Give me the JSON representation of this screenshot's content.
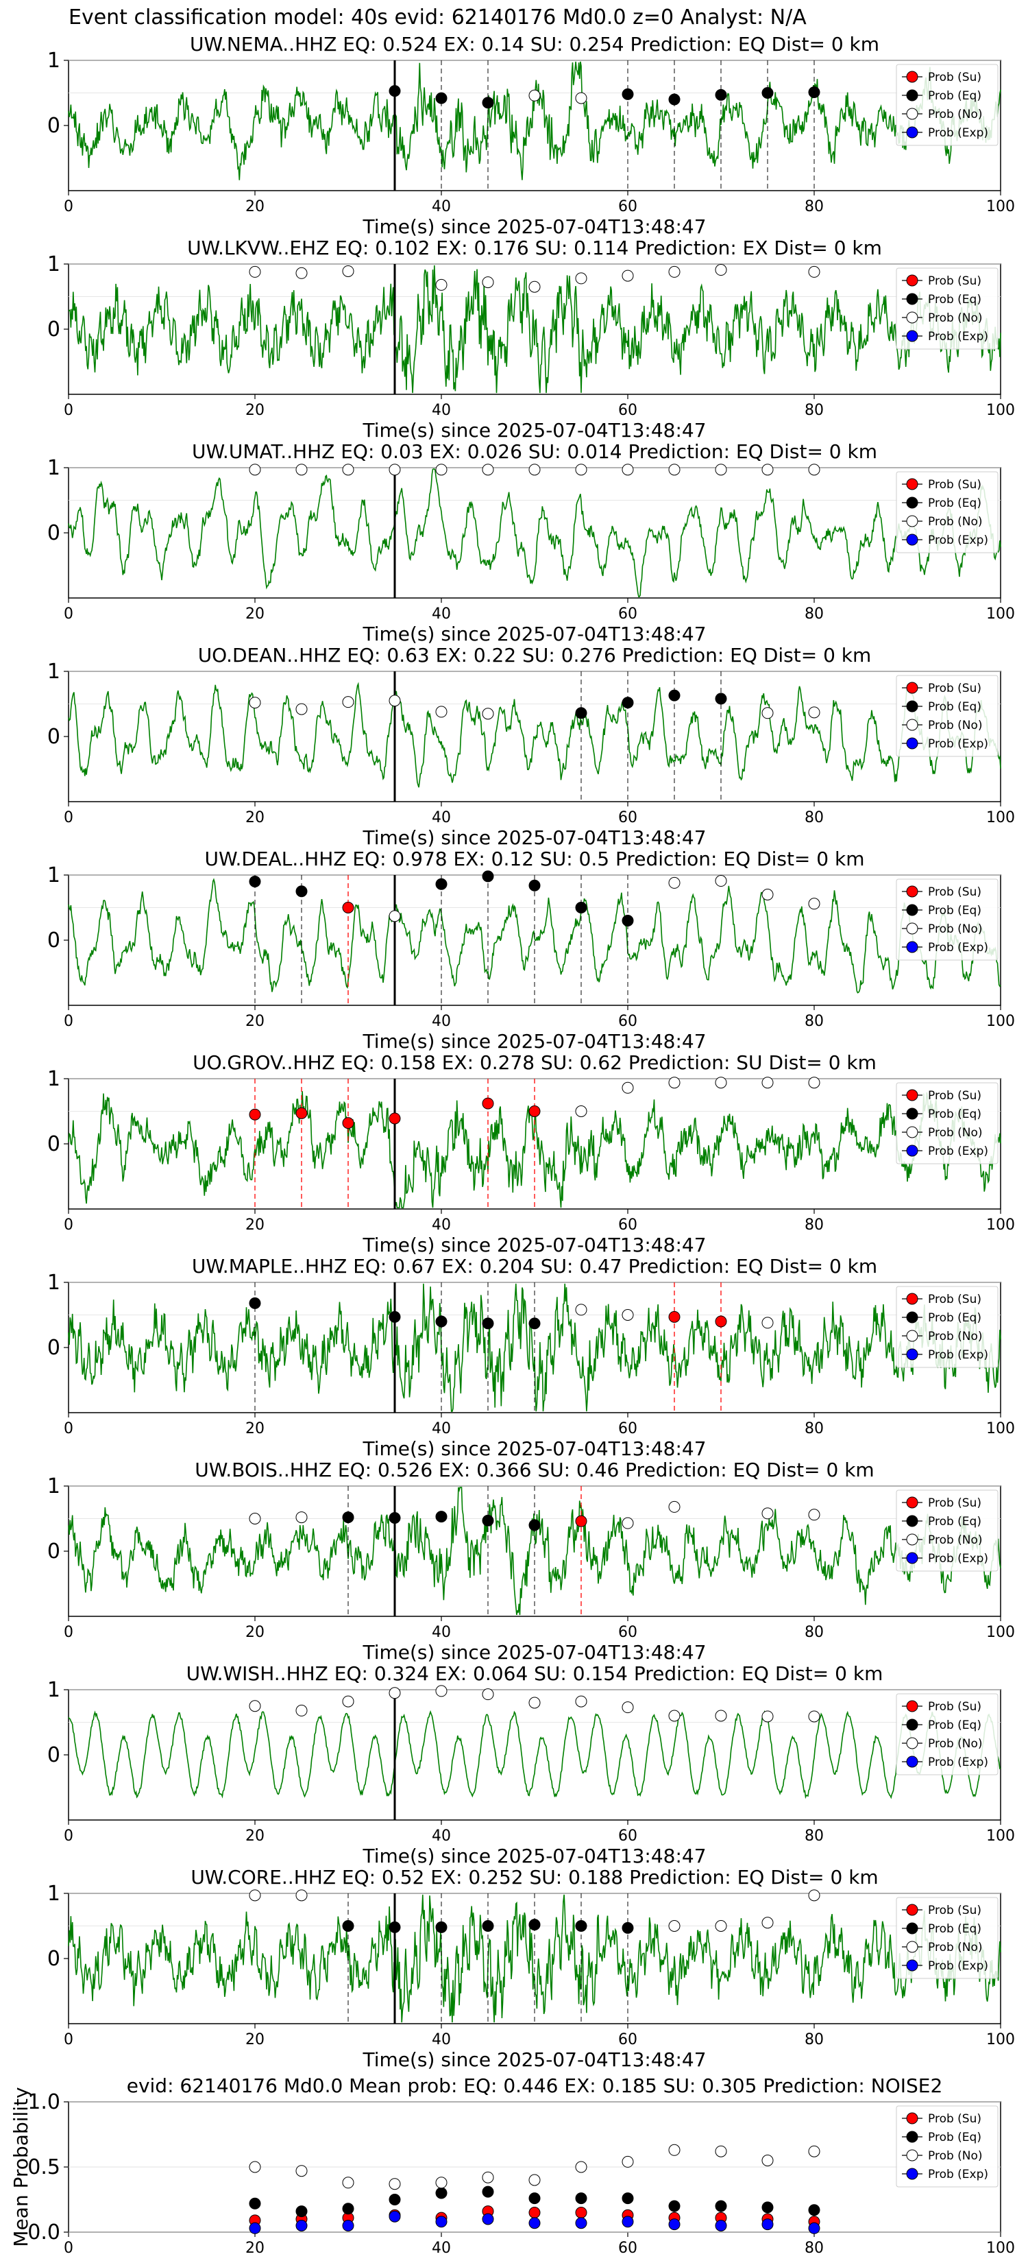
{
  "suptitle": "Event classification model: 40s evid: 62140176 Md0.0 z=0 Analyst: N/A",
  "colors": {
    "waveform": "#008000",
    "su": "#ff0000",
    "eq": "#000000",
    "no": "#ffffff",
    "exp": "#0000ff",
    "su_line": "#ff0000",
    "eq_line": "#000000"
  },
  "chart_data": [
    {
      "type": "line",
      "seed": 11,
      "style": "broadband",
      "title": "UW.NEMA..HHZ   EQ: 0.524  EX: 0.14  SU: 0.254   Prediction: EQ    Dist= 0 km",
      "xlabel": "Time(s) since 2025-07-04T13:48:47",
      "xlim": [
        0,
        100
      ],
      "ylim": [
        -1,
        1
      ],
      "xticks": [
        0,
        20,
        40,
        60,
        80,
        100
      ],
      "yticks": [
        0,
        1
      ],
      "legend": [
        "Prob (Su)",
        "Prob (Eq)",
        "Prob (No)",
        "Prob (Exp)"
      ],
      "legend_position": "top-right",
      "marker_line": 35,
      "eq_lines": [
        40,
        45,
        60,
        65,
        70,
        75,
        80
      ],
      "su_lines": [],
      "points": [
        {
          "x": 35,
          "y": 0.53,
          "c": "eq"
        },
        {
          "x": 40,
          "y": 0.42,
          "c": "eq"
        },
        {
          "x": 45,
          "y": 0.35,
          "c": "eq"
        },
        {
          "x": 50,
          "y": 0.46,
          "c": "no"
        },
        {
          "x": 55,
          "y": 0.42,
          "c": "no"
        },
        {
          "x": 60,
          "y": 0.48,
          "c": "eq"
        },
        {
          "x": 65,
          "y": 0.4,
          "c": "eq"
        },
        {
          "x": 70,
          "y": 0.47,
          "c": "eq"
        },
        {
          "x": 75,
          "y": 0.5,
          "c": "eq"
        },
        {
          "x": 80,
          "y": 0.51,
          "c": "eq"
        }
      ]
    },
    {
      "type": "line",
      "seed": 23,
      "style": "noisy",
      "title": "UW.LKVW..EHZ   EQ: 0.102  EX: 0.176  SU: 0.114   Prediction: EX    Dist= 0 km",
      "xlabel": "Time(s) since 2025-07-04T13:48:47",
      "xlim": [
        0,
        100
      ],
      "ylim": [
        -1,
        1
      ],
      "xticks": [
        0,
        20,
        40,
        60,
        80,
        100
      ],
      "yticks": [
        0,
        1
      ],
      "legend": [
        "Prob (Su)",
        "Prob (Eq)",
        "Prob (No)",
        "Prob (Exp)"
      ],
      "legend_position": "top-right",
      "marker_line": 35,
      "eq_lines": [],
      "su_lines": [],
      "points": [
        {
          "x": 20,
          "y": 0.88,
          "c": "no"
        },
        {
          "x": 25,
          "y": 0.86,
          "c": "no"
        },
        {
          "x": 30,
          "y": 0.89,
          "c": "no"
        },
        {
          "x": 40,
          "y": 0.68,
          "c": "no"
        },
        {
          "x": 45,
          "y": 0.72,
          "c": "no"
        },
        {
          "x": 50,
          "y": 0.65,
          "c": "no"
        },
        {
          "x": 55,
          "y": 0.78,
          "c": "no"
        },
        {
          "x": 60,
          "y": 0.82,
          "c": "no"
        },
        {
          "x": 65,
          "y": 0.88,
          "c": "no"
        },
        {
          "x": 70,
          "y": 0.91,
          "c": "no"
        },
        {
          "x": 80,
          "y": 0.88,
          "c": "no"
        }
      ]
    },
    {
      "type": "line",
      "seed": 37,
      "style": "smooth",
      "title": "UW.UMAT..HHZ   EQ: 0.03  EX: 0.026  SU: 0.014   Prediction: EQ    Dist= 0 km",
      "xlabel": "Time(s) since 2025-07-04T13:48:47",
      "xlim": [
        0,
        100
      ],
      "ylim": [
        -1,
        1
      ],
      "xticks": [
        0,
        20,
        40,
        60,
        80,
        100
      ],
      "yticks": [
        0,
        1
      ],
      "legend": [
        "Prob (Su)",
        "Prob (Eq)",
        "Prob (No)",
        "Prob (Exp)"
      ],
      "legend_position": "top-right",
      "marker_line": 35,
      "eq_lines": [],
      "su_lines": [],
      "points": [
        {
          "x": 20,
          "y": 0.97,
          "c": "no"
        },
        {
          "x": 25,
          "y": 0.97,
          "c": "no"
        },
        {
          "x": 30,
          "y": 0.97,
          "c": "no"
        },
        {
          "x": 35,
          "y": 0.97,
          "c": "no"
        },
        {
          "x": 40,
          "y": 0.97,
          "c": "no"
        },
        {
          "x": 45,
          "y": 0.97,
          "c": "no"
        },
        {
          "x": 50,
          "y": 0.97,
          "c": "no"
        },
        {
          "x": 55,
          "y": 0.97,
          "c": "no"
        },
        {
          "x": 60,
          "y": 0.97,
          "c": "no"
        },
        {
          "x": 65,
          "y": 0.97,
          "c": "no"
        },
        {
          "x": 70,
          "y": 0.97,
          "c": "no"
        },
        {
          "x": 75,
          "y": 0.97,
          "c": "no"
        },
        {
          "x": 80,
          "y": 0.97,
          "c": "no"
        }
      ]
    },
    {
      "type": "line",
      "seed": 41,
      "style": "smooth",
      "title": "UO.DEAN..HHZ   EQ: 0.63  EX: 0.22  SU: 0.276   Prediction: EQ    Dist= 0 km",
      "xlabel": "Time(s) since 2025-07-04T13:48:47",
      "xlim": [
        0,
        100
      ],
      "ylim": [
        -1,
        1
      ],
      "xticks": [
        0,
        20,
        40,
        60,
        80,
        100
      ],
      "yticks": [
        0,
        1
      ],
      "legend": [
        "Prob (Su)",
        "Prob (Eq)",
        "Prob (No)",
        "Prob (Exp)"
      ],
      "legend_position": "top-right",
      "marker_line": 35,
      "eq_lines": [
        55,
        60,
        65,
        70
      ],
      "su_lines": [],
      "points": [
        {
          "x": 20,
          "y": 0.52,
          "c": "no"
        },
        {
          "x": 25,
          "y": 0.42,
          "c": "no"
        },
        {
          "x": 30,
          "y": 0.53,
          "c": "no"
        },
        {
          "x": 35,
          "y": 0.55,
          "c": "no"
        },
        {
          "x": 40,
          "y": 0.38,
          "c": "no"
        },
        {
          "x": 45,
          "y": 0.35,
          "c": "no"
        },
        {
          "x": 55,
          "y": 0.36,
          "c": "eq"
        },
        {
          "x": 60,
          "y": 0.52,
          "c": "eq"
        },
        {
          "x": 65,
          "y": 0.63,
          "c": "eq"
        },
        {
          "x": 70,
          "y": 0.58,
          "c": "eq"
        },
        {
          "x": 75,
          "y": 0.36,
          "c": "no"
        },
        {
          "x": 80,
          "y": 0.37,
          "c": "no"
        }
      ]
    },
    {
      "type": "line",
      "seed": 53,
      "style": "smooth",
      "title": "UW.DEAL..HHZ   EQ: 0.978  EX: 0.12  SU: 0.5   Prediction: EQ    Dist= 0 km",
      "xlabel": "Time(s) since 2025-07-04T13:48:47",
      "xlim": [
        0,
        100
      ],
      "ylim": [
        -1,
        1
      ],
      "xticks": [
        0,
        20,
        40,
        60,
        80,
        100
      ],
      "yticks": [
        0,
        1
      ],
      "legend": [
        "Prob (Su)",
        "Prob (Eq)",
        "Prob (No)",
        "Prob (Exp)"
      ],
      "legend_position": "top-right",
      "marker_line": 35,
      "eq_lines": [
        20,
        25,
        40,
        45,
        50,
        55,
        60
      ],
      "su_lines": [
        30
      ],
      "points": [
        {
          "x": 20,
          "y": 0.9,
          "c": "eq"
        },
        {
          "x": 25,
          "y": 0.75,
          "c": "eq"
        },
        {
          "x": 30,
          "y": 0.5,
          "c": "su"
        },
        {
          "x": 35,
          "y": 0.37,
          "c": "no"
        },
        {
          "x": 40,
          "y": 0.86,
          "c": "eq"
        },
        {
          "x": 45,
          "y": 0.98,
          "c": "eq"
        },
        {
          "x": 50,
          "y": 0.84,
          "c": "eq"
        },
        {
          "x": 55,
          "y": 0.5,
          "c": "eq"
        },
        {
          "x": 60,
          "y": 0.3,
          "c": "eq"
        },
        {
          "x": 65,
          "y": 0.88,
          "c": "no"
        },
        {
          "x": 70,
          "y": 0.91,
          "c": "no"
        },
        {
          "x": 75,
          "y": 0.7,
          "c": "no"
        },
        {
          "x": 80,
          "y": 0.56,
          "c": "no"
        }
      ]
    },
    {
      "type": "line",
      "seed": 67,
      "style": "broadband",
      "title": "UO.GROV..HHZ   EQ: 0.158  EX: 0.278  SU: 0.62   Prediction: SU    Dist= 0 km",
      "xlabel": "Time(s) since 2025-07-04T13:48:47",
      "xlim": [
        0,
        100
      ],
      "ylim": [
        -1,
        1
      ],
      "xticks": [
        0,
        20,
        40,
        60,
        80,
        100
      ],
      "yticks": [
        0,
        1
      ],
      "legend": [
        "Prob (Su)",
        "Prob (Eq)",
        "Prob (No)",
        "Prob (Exp)"
      ],
      "legend_position": "top-right",
      "marker_line": 35,
      "eq_lines": [],
      "su_lines": [
        20,
        25,
        30,
        45,
        50
      ],
      "points": [
        {
          "x": 20,
          "y": 0.45,
          "c": "su"
        },
        {
          "x": 25,
          "y": 0.47,
          "c": "su"
        },
        {
          "x": 30,
          "y": 0.32,
          "c": "su"
        },
        {
          "x": 35,
          "y": 0.39,
          "c": "su"
        },
        {
          "x": 45,
          "y": 0.62,
          "c": "su"
        },
        {
          "x": 50,
          "y": 0.5,
          "c": "su"
        },
        {
          "x": 55,
          "y": 0.5,
          "c": "no"
        },
        {
          "x": 60,
          "y": 0.86,
          "c": "no"
        },
        {
          "x": 65,
          "y": 0.94,
          "c": "no"
        },
        {
          "x": 70,
          "y": 0.94,
          "c": "no"
        },
        {
          "x": 75,
          "y": 0.94,
          "c": "no"
        },
        {
          "x": 80,
          "y": 0.94,
          "c": "no"
        }
      ]
    },
    {
      "type": "line",
      "seed": 79,
      "style": "noisy",
      "title": "UW.MAPLE..HHZ   EQ: 0.67  EX: 0.204  SU: 0.47   Prediction: EQ    Dist= 0 km",
      "xlabel": "Time(s) since 2025-07-04T13:48:47",
      "xlim": [
        0,
        100
      ],
      "ylim": [
        -1,
        1
      ],
      "xticks": [
        0,
        20,
        40,
        60,
        80,
        100
      ],
      "yticks": [
        0,
        1
      ],
      "legend": [
        "Prob (Su)",
        "Prob (Eq)",
        "Prob (No)",
        "Prob (Exp)"
      ],
      "legend_position": "top-right",
      "marker_line": 35,
      "eq_lines": [
        20,
        40,
        45,
        50
      ],
      "su_lines": [
        65,
        70
      ],
      "points": [
        {
          "x": 20,
          "y": 0.68,
          "c": "eq"
        },
        {
          "x": 35,
          "y": 0.47,
          "c": "eq"
        },
        {
          "x": 40,
          "y": 0.4,
          "c": "eq"
        },
        {
          "x": 45,
          "y": 0.37,
          "c": "eq"
        },
        {
          "x": 50,
          "y": 0.37,
          "c": "eq"
        },
        {
          "x": 55,
          "y": 0.58,
          "c": "no"
        },
        {
          "x": 60,
          "y": 0.5,
          "c": "no"
        },
        {
          "x": 65,
          "y": 0.47,
          "c": "su"
        },
        {
          "x": 70,
          "y": 0.4,
          "c": "su"
        },
        {
          "x": 75,
          "y": 0.38,
          "c": "no"
        }
      ]
    },
    {
      "type": "line",
      "seed": 83,
      "style": "broadband",
      "title": "UW.BOIS..HHZ   EQ: 0.526  EX: 0.366  SU: 0.46   Prediction: EQ    Dist= 0 km",
      "xlabel": "Time(s) since 2025-07-04T13:48:47",
      "xlim": [
        0,
        100
      ],
      "ylim": [
        -1,
        1
      ],
      "xticks": [
        0,
        20,
        40,
        60,
        80,
        100
      ],
      "yticks": [
        0,
        1
      ],
      "legend": [
        "Prob (Su)",
        "Prob (Eq)",
        "Prob (No)",
        "Prob (Exp)"
      ],
      "legend_position": "top-right",
      "marker_line": 35,
      "eq_lines": [
        30,
        45,
        50
      ],
      "su_lines": [
        55
      ],
      "points": [
        {
          "x": 20,
          "y": 0.5,
          "c": "no"
        },
        {
          "x": 25,
          "y": 0.52,
          "c": "no"
        },
        {
          "x": 30,
          "y": 0.52,
          "c": "eq"
        },
        {
          "x": 35,
          "y": 0.51,
          "c": "eq"
        },
        {
          "x": 40,
          "y": 0.53,
          "c": "eq"
        },
        {
          "x": 45,
          "y": 0.47,
          "c": "eq"
        },
        {
          "x": 50,
          "y": 0.4,
          "c": "eq"
        },
        {
          "x": 55,
          "y": 0.46,
          "c": "su"
        },
        {
          "x": 60,
          "y": 0.43,
          "c": "no"
        },
        {
          "x": 65,
          "y": 0.68,
          "c": "no"
        },
        {
          "x": 75,
          "y": 0.58,
          "c": "no"
        },
        {
          "x": 80,
          "y": 0.56,
          "c": "no"
        }
      ]
    },
    {
      "type": "line",
      "seed": 97,
      "style": "sine",
      "title": "UW.WISH..HHZ   EQ: 0.324  EX: 0.064  SU: 0.154   Prediction: EQ    Dist= 0 km",
      "xlabel": "Time(s) since 2025-07-04T13:48:47",
      "xlim": [
        0,
        100
      ],
      "ylim": [
        -1,
        1
      ],
      "xticks": [
        0,
        20,
        40,
        60,
        80,
        100
      ],
      "yticks": [
        0,
        1
      ],
      "legend": [
        "Prob (Su)",
        "Prob (Eq)",
        "Prob (No)",
        "Prob (Exp)"
      ],
      "legend_position": "top-right",
      "marker_line": 35,
      "eq_lines": [],
      "su_lines": [],
      "points": [
        {
          "x": 20,
          "y": 0.75,
          "c": "no"
        },
        {
          "x": 25,
          "y": 0.68,
          "c": "no"
        },
        {
          "x": 30,
          "y": 0.82,
          "c": "no"
        },
        {
          "x": 35,
          "y": 0.95,
          "c": "no"
        },
        {
          "x": 40,
          "y": 0.98,
          "c": "no"
        },
        {
          "x": 45,
          "y": 0.93,
          "c": "no"
        },
        {
          "x": 50,
          "y": 0.8,
          "c": "no"
        },
        {
          "x": 55,
          "y": 0.82,
          "c": "no"
        },
        {
          "x": 60,
          "y": 0.73,
          "c": "no"
        },
        {
          "x": 65,
          "y": 0.6,
          "c": "no"
        },
        {
          "x": 70,
          "y": 0.6,
          "c": "no"
        },
        {
          "x": 75,
          "y": 0.59,
          "c": "no"
        },
        {
          "x": 80,
          "y": 0.59,
          "c": "no"
        }
      ]
    },
    {
      "type": "line",
      "seed": 101,
      "style": "noisy",
      "title": "UW.CORE..HHZ   EQ: 0.52  EX: 0.252  SU: 0.188   Prediction: EQ    Dist= 0 km",
      "xlabel": "Time(s) since 2025-07-04T13:48:47",
      "xlim": [
        0,
        100
      ],
      "ylim": [
        -1,
        1
      ],
      "xticks": [
        0,
        20,
        40,
        60,
        80,
        100
      ],
      "yticks": [
        0,
        1
      ],
      "legend": [
        "Prob (Su)",
        "Prob (Eq)",
        "Prob (No)",
        "Prob (Exp)"
      ],
      "legend_position": "top-right",
      "marker_line": 35,
      "eq_lines": [
        30,
        40,
        45,
        50,
        55,
        60
      ],
      "su_lines": [],
      "points": [
        {
          "x": 20,
          "y": 0.97,
          "c": "no"
        },
        {
          "x": 25,
          "y": 0.97,
          "c": "no"
        },
        {
          "x": 30,
          "y": 0.5,
          "c": "eq"
        },
        {
          "x": 35,
          "y": 0.48,
          "c": "eq"
        },
        {
          "x": 40,
          "y": 0.48,
          "c": "eq"
        },
        {
          "x": 45,
          "y": 0.5,
          "c": "eq"
        },
        {
          "x": 50,
          "y": 0.52,
          "c": "eq"
        },
        {
          "x": 55,
          "y": 0.5,
          "c": "eq"
        },
        {
          "x": 60,
          "y": 0.47,
          "c": "eq"
        },
        {
          "x": 65,
          "y": 0.5,
          "c": "no"
        },
        {
          "x": 70,
          "y": 0.5,
          "c": "no"
        },
        {
          "x": 75,
          "y": 0.55,
          "c": "no"
        },
        {
          "x": 80,
          "y": 0.97,
          "c": "no"
        }
      ]
    },
    {
      "type": "scatter",
      "title": "evid: 62140176  Md0.0   Mean prob:   EQ: 0.446  EX: 0.185  SU: 0.305   Prediction: NOISE2",
      "ylabel": "Mean Probability",
      "xlim": [
        0,
        100
      ],
      "ylim": [
        0,
        1
      ],
      "xticks": [
        0,
        20,
        40,
        60,
        80,
        100
      ],
      "yticks": [
        0.0,
        0.5,
        1.0
      ],
      "legend": [
        "Prob (Su)",
        "Prob (Eq)",
        "Prob (No)",
        "Prob (Exp)"
      ],
      "legend_position": "top-right",
      "grid": true,
      "x": [
        20,
        25,
        30,
        35,
        40,
        45,
        50,
        55,
        60,
        65,
        70,
        75,
        80
      ],
      "series": [
        {
          "name": "Prob (Su)",
          "c": "su",
          "values": [
            0.09,
            0.1,
            0.11,
            0.13,
            0.11,
            0.16,
            0.15,
            0.15,
            0.13,
            0.11,
            0.11,
            0.1,
            0.08
          ]
        },
        {
          "name": "Prob (Eq)",
          "c": "eq",
          "values": [
            0.22,
            0.16,
            0.18,
            0.25,
            0.3,
            0.31,
            0.26,
            0.26,
            0.26,
            0.2,
            0.2,
            0.19,
            0.17
          ]
        },
        {
          "name": "Prob (No)",
          "c": "no",
          "values": [
            0.5,
            0.47,
            0.38,
            0.37,
            0.38,
            0.42,
            0.4,
            0.5,
            0.54,
            0.63,
            0.62,
            0.55,
            0.62
          ]
        },
        {
          "name": "Prob (Exp)",
          "c": "exp",
          "values": [
            0.03,
            0.05,
            0.05,
            0.12,
            0.08,
            0.1,
            0.07,
            0.07,
            0.08,
            0.06,
            0.05,
            0.06,
            0.03
          ]
        }
      ]
    }
  ]
}
